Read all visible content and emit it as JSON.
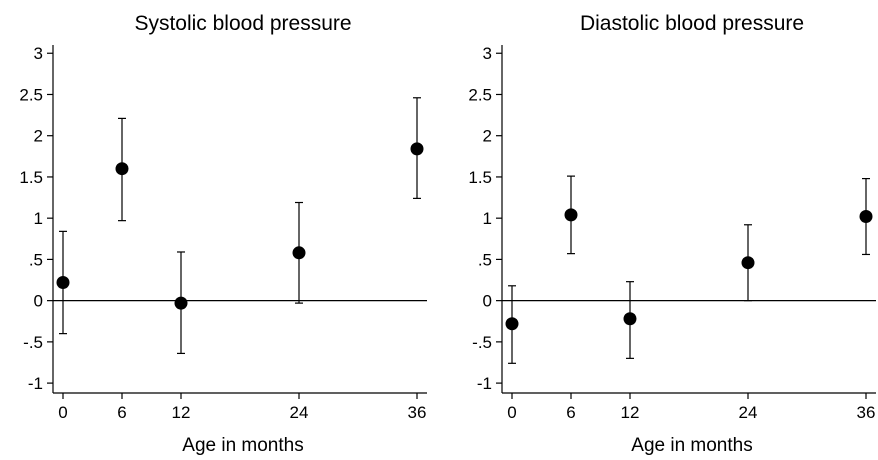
{
  "chart_data": [
    {
      "type": "scatter",
      "title": "Systolic blood pressure",
      "xlabel": "Age in months",
      "ylabel": "",
      "x_ticks": [
        0,
        6,
        12,
        24,
        36
      ],
      "x_tick_labels": [
        "0",
        "6",
        "12",
        "24",
        "36"
      ],
      "y_ticks": [
        -1,
        -0.5,
        0,
        0.5,
        1,
        1.5,
        2,
        2.5,
        3
      ],
      "y_tick_labels": [
        "-1",
        "-.5",
        "0",
        ".5",
        "1",
        "1.5",
        "2",
        "2.5",
        "3"
      ],
      "xlim": [
        -1,
        37
      ],
      "ylim": [
        -1.12,
        3.1
      ],
      "reference_line_y": 0,
      "grid": false,
      "legend": "none",
      "series": [
        {
          "x": [
            0,
            6,
            12,
            24,
            36
          ],
          "y": [
            0.22,
            1.6,
            -0.03,
            0.58,
            1.84
          ],
          "ci_low": [
            -0.4,
            0.97,
            -0.64,
            -0.03,
            1.24
          ],
          "ci_high": [
            0.84,
            2.21,
            0.59,
            1.19,
            2.46
          ]
        }
      ]
    },
    {
      "type": "scatter",
      "title": "Diastolic blood pressure",
      "xlabel": "Age in months",
      "ylabel": "",
      "x_ticks": [
        0,
        6,
        12,
        24,
        36
      ],
      "x_tick_labels": [
        "0",
        "6",
        "12",
        "24",
        "36"
      ],
      "y_ticks": [
        -1,
        -0.5,
        0,
        0.5,
        1,
        1.5,
        2,
        2.5,
        3
      ],
      "y_tick_labels": [
        "-1",
        "-.5",
        "0",
        ".5",
        "1",
        "1.5",
        "2",
        "2.5",
        "3"
      ],
      "xlim": [
        -1,
        37
      ],
      "ylim": [
        -1.12,
        3.1
      ],
      "reference_line_y": 0,
      "grid": false,
      "legend": "none",
      "series": [
        {
          "x": [
            0,
            6,
            12,
            24,
            36
          ],
          "y": [
            -0.28,
            1.04,
            -0.22,
            0.46,
            1.02
          ],
          "ci_low": [
            -0.76,
            0.57,
            -0.7,
            0.0,
            0.56
          ],
          "ci_high": [
            0.18,
            1.51,
            0.23,
            0.92,
            1.48
          ]
        }
      ]
    }
  ],
  "colors": {
    "marker": "#000000",
    "axis": "#000000",
    "background": "#ffffff"
  }
}
